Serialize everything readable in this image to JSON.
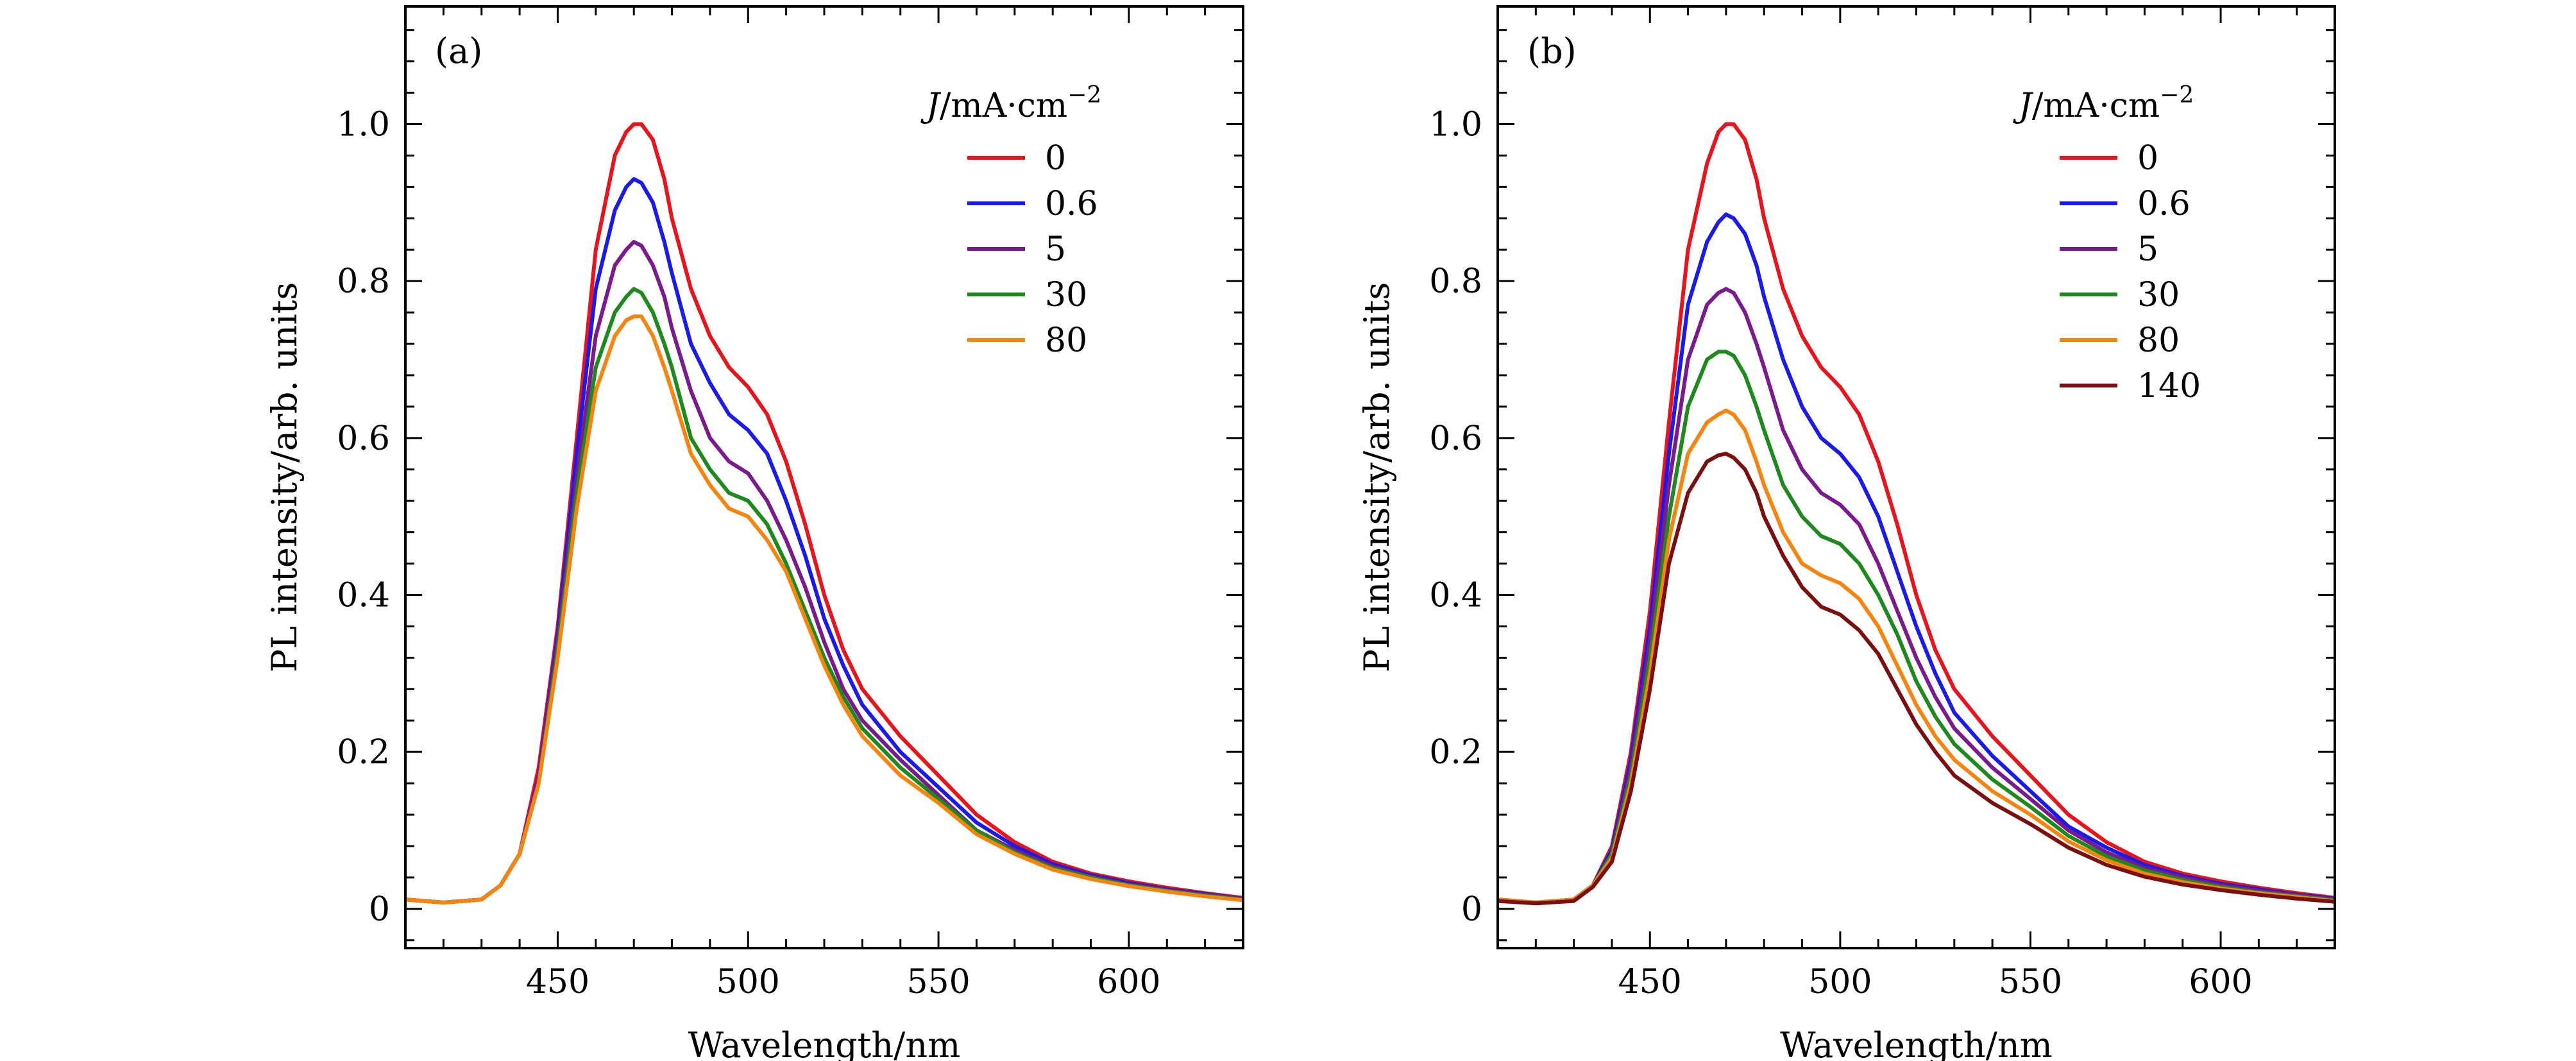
{
  "chart_data": [
    {
      "type": "line",
      "panel_label": "(a)",
      "xlabel": "Wavelength/nm",
      "ylabel": "PL intensity/arb. units",
      "xlim": [
        410,
        630
      ],
      "ylim": [
        -0.05,
        1.15
      ],
      "xticks": [
        450,
        500,
        550,
        600
      ],
      "yticks": [
        0,
        0.2,
        0.4,
        0.6,
        0.8,
        1.0
      ],
      "ytick_labels": [
        "0",
        "0.2",
        "0.4",
        "0.6",
        "0.8",
        "1.0"
      ],
      "grid": false,
      "legend": {
        "placement": "top-right",
        "title_var": "J",
        "title_units": "/mA·cm",
        "title_exp": "−2"
      },
      "x": [
        410,
        420,
        430,
        435,
        440,
        445,
        450,
        455,
        460,
        465,
        468,
        470,
        472,
        475,
        478,
        480,
        485,
        490,
        495,
        500,
        505,
        510,
        515,
        520,
        525,
        530,
        540,
        550,
        560,
        570,
        580,
        590,
        600,
        610,
        620,
        630
      ],
      "series": [
        {
          "name": "0",
          "color": "#e8141c",
          "values": [
            0.012,
            0.008,
            0.012,
            0.03,
            0.07,
            0.18,
            0.36,
            0.6,
            0.84,
            0.96,
            0.99,
            1.0,
            1.0,
            0.98,
            0.93,
            0.88,
            0.79,
            0.73,
            0.69,
            0.665,
            0.63,
            0.57,
            0.49,
            0.4,
            0.33,
            0.28,
            0.22,
            0.17,
            0.12,
            0.085,
            0.06,
            0.045,
            0.035,
            0.027,
            0.02,
            0.014
          ]
        },
        {
          "name": "0.6",
          "color": "#1a1aeb",
          "values": [
            0.012,
            0.008,
            0.012,
            0.03,
            0.07,
            0.17,
            0.35,
            0.58,
            0.79,
            0.89,
            0.92,
            0.93,
            0.925,
            0.9,
            0.85,
            0.81,
            0.72,
            0.67,
            0.63,
            0.61,
            0.58,
            0.52,
            0.45,
            0.37,
            0.31,
            0.26,
            0.2,
            0.155,
            0.11,
            0.08,
            0.057,
            0.043,
            0.033,
            0.025,
            0.019,
            0.013
          ]
        },
        {
          "name": "5",
          "color": "#7b1a8c",
          "values": [
            0.012,
            0.008,
            0.012,
            0.03,
            0.07,
            0.17,
            0.34,
            0.55,
            0.73,
            0.82,
            0.84,
            0.85,
            0.845,
            0.82,
            0.78,
            0.74,
            0.66,
            0.6,
            0.57,
            0.555,
            0.52,
            0.47,
            0.41,
            0.34,
            0.28,
            0.24,
            0.19,
            0.145,
            0.1,
            0.075,
            0.054,
            0.041,
            0.031,
            0.024,
            0.018,
            0.013
          ]
        },
        {
          "name": "30",
          "color": "#1e8a1e",
          "values": [
            0.012,
            0.008,
            0.012,
            0.03,
            0.07,
            0.16,
            0.33,
            0.53,
            0.69,
            0.76,
            0.78,
            0.79,
            0.785,
            0.76,
            0.72,
            0.69,
            0.6,
            0.56,
            0.53,
            0.52,
            0.49,
            0.44,
            0.38,
            0.32,
            0.27,
            0.23,
            0.18,
            0.14,
            0.1,
            0.072,
            0.052,
            0.04,
            0.03,
            0.023,
            0.017,
            0.012
          ]
        },
        {
          "name": "80",
          "color": "#f5850f",
          "values": [
            0.012,
            0.008,
            0.012,
            0.03,
            0.07,
            0.16,
            0.32,
            0.51,
            0.66,
            0.73,
            0.75,
            0.755,
            0.755,
            0.73,
            0.69,
            0.66,
            0.58,
            0.54,
            0.51,
            0.5,
            0.47,
            0.43,
            0.37,
            0.31,
            0.26,
            0.22,
            0.17,
            0.135,
            0.095,
            0.07,
            0.05,
            0.038,
            0.029,
            0.022,
            0.016,
            0.011
          ]
        }
      ]
    },
    {
      "type": "line",
      "panel_label": "(b)",
      "xlabel": "Wavelength/nm",
      "ylabel": "PL intensity/arb. units",
      "xlim": [
        410,
        630
      ],
      "ylim": [
        -0.05,
        1.15
      ],
      "xticks": [
        450,
        500,
        550,
        600
      ],
      "yticks": [
        0,
        0.2,
        0.4,
        0.6,
        0.8,
        1.0
      ],
      "ytick_labels": [
        "0",
        "0.2",
        "0.4",
        "0.6",
        "0.8",
        "1.0"
      ],
      "grid": false,
      "legend": {
        "placement": "top-right",
        "title_var": "J",
        "title_units": "/mA·cm",
        "title_exp": "−2"
      },
      "x": [
        410,
        420,
        430,
        435,
        440,
        445,
        450,
        455,
        460,
        465,
        468,
        470,
        472,
        475,
        478,
        480,
        485,
        490,
        495,
        500,
        505,
        510,
        515,
        520,
        525,
        530,
        540,
        550,
        560,
        570,
        580,
        590,
        600,
        610,
        620,
        630
      ],
      "series": [
        {
          "name": "0",
          "color": "#e8141c",
          "values": [
            0.012,
            0.008,
            0.012,
            0.03,
            0.08,
            0.2,
            0.38,
            0.62,
            0.84,
            0.95,
            0.99,
            1.0,
            1.0,
            0.98,
            0.93,
            0.88,
            0.79,
            0.73,
            0.69,
            0.665,
            0.63,
            0.57,
            0.49,
            0.4,
            0.33,
            0.28,
            0.22,
            0.17,
            0.12,
            0.085,
            0.06,
            0.045,
            0.035,
            0.027,
            0.02,
            0.014
          ]
        },
        {
          "name": "0.6",
          "color": "#1a1aeb",
          "values": [
            0.012,
            0.008,
            0.012,
            0.03,
            0.075,
            0.19,
            0.36,
            0.58,
            0.77,
            0.85,
            0.875,
            0.885,
            0.88,
            0.86,
            0.82,
            0.78,
            0.7,
            0.64,
            0.6,
            0.58,
            0.55,
            0.5,
            0.43,
            0.36,
            0.3,
            0.25,
            0.195,
            0.15,
            0.105,
            0.078,
            0.056,
            0.042,
            0.032,
            0.025,
            0.018,
            0.013
          ]
        },
        {
          "name": "5",
          "color": "#7b1a8c",
          "values": [
            0.012,
            0.008,
            0.012,
            0.03,
            0.07,
            0.18,
            0.34,
            0.54,
            0.7,
            0.77,
            0.785,
            0.79,
            0.785,
            0.76,
            0.72,
            0.69,
            0.61,
            0.56,
            0.53,
            0.515,
            0.49,
            0.44,
            0.38,
            0.32,
            0.27,
            0.23,
            0.18,
            0.14,
            0.1,
            0.072,
            0.052,
            0.04,
            0.03,
            0.023,
            0.017,
            0.012
          ]
        },
        {
          "name": "30",
          "color": "#1e8a1e",
          "values": [
            0.012,
            0.008,
            0.012,
            0.03,
            0.07,
            0.17,
            0.32,
            0.5,
            0.64,
            0.7,
            0.71,
            0.71,
            0.705,
            0.68,
            0.64,
            0.61,
            0.54,
            0.5,
            0.475,
            0.465,
            0.44,
            0.4,
            0.35,
            0.29,
            0.245,
            0.21,
            0.165,
            0.13,
            0.093,
            0.067,
            0.049,
            0.037,
            0.028,
            0.021,
            0.016,
            0.011
          ]
        },
        {
          "name": "80",
          "color": "#f5850f",
          "values": [
            0.012,
            0.008,
            0.012,
            0.03,
            0.065,
            0.16,
            0.3,
            0.47,
            0.58,
            0.62,
            0.63,
            0.635,
            0.63,
            0.61,
            0.57,
            0.54,
            0.48,
            0.44,
            0.425,
            0.415,
            0.395,
            0.36,
            0.31,
            0.26,
            0.22,
            0.19,
            0.15,
            0.12,
            0.086,
            0.062,
            0.045,
            0.034,
            0.026,
            0.02,
            0.015,
            0.01
          ]
        },
        {
          "name": "140",
          "color": "#7a0f0f",
          "values": [
            0.01,
            0.007,
            0.01,
            0.028,
            0.06,
            0.15,
            0.28,
            0.44,
            0.53,
            0.57,
            0.578,
            0.58,
            0.575,
            0.56,
            0.53,
            0.5,
            0.45,
            0.41,
            0.385,
            0.375,
            0.355,
            0.325,
            0.28,
            0.235,
            0.2,
            0.17,
            0.135,
            0.108,
            0.078,
            0.056,
            0.041,
            0.031,
            0.024,
            0.018,
            0.013,
            0.009
          ]
        }
      ]
    }
  ]
}
